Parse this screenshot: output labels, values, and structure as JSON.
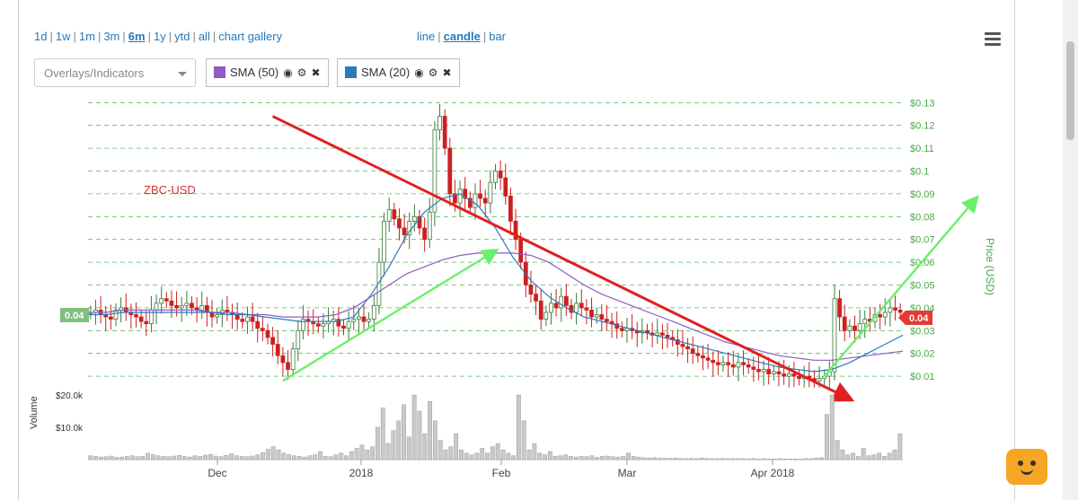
{
  "toolbar": {
    "ranges": [
      "1d",
      "1w",
      "1m",
      "3m",
      "6m",
      "1y",
      "ytd",
      "all",
      "chart gallery"
    ],
    "selected_range": "6m",
    "chart_types": [
      "line",
      "candle",
      "bar"
    ],
    "selected_type": "candle",
    "overlay_placeholder": "Overlays/Indicators",
    "indicators": [
      {
        "label": "SMA (50)",
        "color": "#8e5cc4"
      },
      {
        "label": "SMA (20)",
        "color": "#2b7bb9"
      }
    ]
  },
  "icons": {
    "menu": "hamburger-icon",
    "eye": "eye-icon",
    "gear": "gear-icon",
    "close": "close-icon",
    "caret": "chevron-down-icon",
    "mascot": "chat-mascot-icon"
  },
  "chart_data": {
    "type": "candlestick",
    "symbol_label": "ZBC-USD",
    "y_axis_label": "Price (USD)",
    "y_ticks": [
      "$0.01",
      "$0.02",
      "$0.03",
      "$0.04",
      "$0.05",
      "$0.06",
      "$0.07",
      "$0.08",
      "$0.09",
      "$0.1",
      "$0.11",
      "$0.12",
      "$0.13"
    ],
    "ylim": [
      0,
      0.13
    ],
    "x_ticks": [
      "Dec",
      "2018",
      "Feb",
      "Mar",
      "Apr 2018"
    ],
    "last_price_label": "0.04",
    "crosshair_price_label": "0.04",
    "volume_label": "Volume",
    "volume_ticks": [
      "$10.0k",
      "$20.0k"
    ],
    "colors": {
      "up": "#3a7a3a",
      "down": "#cc2020",
      "sma50": "#8e5cc4",
      "sma20": "#2b7bb9",
      "grid": "#5cb85c",
      "downtrend": "#e02020",
      "uptrend": "#6af06a",
      "volume": "#c9c9c9"
    },
    "approx_close": [
      0.038,
      0.039,
      0.037,
      0.036,
      0.035,
      0.039,
      0.04,
      0.038,
      0.037,
      0.036,
      0.034,
      0.033,
      0.039,
      0.042,
      0.044,
      0.043,
      0.041,
      0.04,
      0.041,
      0.042,
      0.04,
      0.039,
      0.041,
      0.038,
      0.036,
      0.037,
      0.039,
      0.038,
      0.037,
      0.035,
      0.034,
      0.036,
      0.034,
      0.031,
      0.03,
      0.027,
      0.024,
      0.019,
      0.016,
      0.013,
      0.022,
      0.03,
      0.035,
      0.034,
      0.033,
      0.032,
      0.033,
      0.034,
      0.035,
      0.032,
      0.031,
      0.034,
      0.035,
      0.036,
      0.034,
      0.035,
      0.041,
      0.06,
      0.078,
      0.083,
      0.079,
      0.075,
      0.072,
      0.078,
      0.08,
      0.075,
      0.07,
      0.082,
      0.118,
      0.124,
      0.11,
      0.09,
      0.086,
      0.092,
      0.088,
      0.084,
      0.09,
      0.088,
      0.086,
      0.095,
      0.1,
      0.097,
      0.089,
      0.078,
      0.07,
      0.06,
      0.05,
      0.046,
      0.043,
      0.035,
      0.038,
      0.042,
      0.04,
      0.045,
      0.041,
      0.038,
      0.042,
      0.04,
      0.039,
      0.036,
      0.037,
      0.035,
      0.034,
      0.033,
      0.031,
      0.03,
      0.031,
      0.03,
      0.029,
      0.03,
      0.029,
      0.028,
      0.029,
      0.028,
      0.027,
      0.026,
      0.024,
      0.023,
      0.022,
      0.02,
      0.019,
      0.018,
      0.017,
      0.016,
      0.015,
      0.016,
      0.015,
      0.014,
      0.016,
      0.015,
      0.014,
      0.013,
      0.012,
      0.013,
      0.011,
      0.012,
      0.011,
      0.01,
      0.011,
      0.01,
      0.009,
      0.01,
      0.009,
      0.008,
      0.009,
      0.01,
      0.012,
      0.044,
      0.036,
      0.03,
      0.032,
      0.03,
      0.033,
      0.035,
      0.034,
      0.037,
      0.036,
      0.038,
      0.04,
      0.039,
      0.038
    ],
    "approx_sma20": [
      0.037,
      0.037,
      0.038,
      0.038,
      0.038,
      0.038,
      0.038,
      0.038,
      0.037,
      0.037,
      0.036,
      0.035,
      0.034,
      0.034,
      0.034,
      0.036,
      0.046,
      0.058,
      0.072,
      0.082,
      0.088,
      0.09,
      0.085,
      0.075,
      0.062,
      0.052,
      0.045,
      0.04,
      0.036,
      0.034,
      0.032,
      0.03,
      0.028,
      0.026,
      0.024,
      0.022,
      0.02,
      0.018,
      0.016,
      0.014,
      0.013,
      0.012,
      0.013,
      0.016,
      0.02,
      0.024,
      0.028
    ],
    "approx_sma50": [
      0.038,
      0.038,
      0.039,
      0.039,
      0.039,
      0.039,
      0.039,
      0.038,
      0.038,
      0.037,
      0.037,
      0.036,
      0.036,
      0.036,
      0.037,
      0.04,
      0.045,
      0.05,
      0.055,
      0.058,
      0.061,
      0.063,
      0.064,
      0.064,
      0.064,
      0.063,
      0.06,
      0.055,
      0.05,
      0.046,
      0.043,
      0.04,
      0.037,
      0.034,
      0.031,
      0.028,
      0.025,
      0.023,
      0.021,
      0.019,
      0.018,
      0.017,
      0.017,
      0.018,
      0.019,
      0.02,
      0.021
    ],
    "approx_volume_k": [
      1.2,
      1.0,
      0.8,
      0.9,
      1.1,
      0.7,
      0.8,
      1.0,
      1.2,
      0.9,
      1.0,
      2.0,
      1.5,
      1.2,
      1.0,
      0.9,
      1.1,
      1.3,
      1.0,
      0.8,
      1.2,
      1.0,
      1.4,
      1.6,
      1.1,
      0.9,
      1.3,
      1.8,
      1.2,
      1.0,
      0.9,
      1.1,
      1.5,
      2.2,
      3.2,
      4.0,
      3.0,
      2.0,
      1.5,
      1.2,
      1.0,
      0.8,
      1.2,
      1.5,
      2.5,
      1.0,
      0.9,
      1.5,
      2.0,
      1.2,
      2.5,
      3.5,
      4.5,
      3.0,
      4.0,
      10.0,
      16.0,
      5.0,
      9.0,
      12.0,
      17.0,
      7.0,
      20.0,
      15.0,
      8.0,
      18.0,
      12.0,
      6.0,
      3.0,
      4.0,
      8.0,
      3.0,
      2.0,
      1.5,
      2.0,
      3.5,
      2.0,
      4.0,
      5.0,
      3.0,
      2.0,
      1.2,
      20.0,
      12.0,
      3.0,
      5.0,
      2.0,
      1.5,
      2.5,
      1.0,
      1.2,
      1.5,
      1.0,
      0.8,
      1.0,
      0.9,
      1.2,
      0.7,
      1.0,
      1.1,
      0.9,
      0.8,
      1.0,
      2.0,
      1.0,
      0.8,
      0.6,
      0.5,
      0.6,
      0.5,
      0.5,
      0.4,
      0.5,
      0.4,
      0.3,
      0.4,
      0.3,
      0.5,
      0.4,
      0.3,
      0.3,
      0.4,
      0.3,
      0.3,
      0.3,
      0.3,
      0.2,
      0.3,
      0.2,
      0.3,
      0.2,
      0.2,
      0.3,
      0.2,
      0.2,
      0.2,
      0.2,
      0.3,
      0.3,
      0.5,
      0.6,
      14.0,
      20.0,
      6.0,
      3.0,
      1.5,
      2.0,
      1.0,
      3.5,
      1.2,
      1.5,
      2.0,
      1.0,
      2.0,
      3.0,
      8.0
    ],
    "annotations": [
      {
        "kind": "downtrend-line",
        "from": [
          36,
          0.124
        ],
        "to": [
          150,
          0.0
        ]
      },
      {
        "kind": "uptrend-line",
        "from": [
          38,
          0.008
        ],
        "to": [
          80,
          0.065
        ]
      },
      {
        "kind": "uptrend-line",
        "from": [
          145,
          0.01
        ],
        "to": [
          175,
          0.088
        ]
      }
    ]
  }
}
